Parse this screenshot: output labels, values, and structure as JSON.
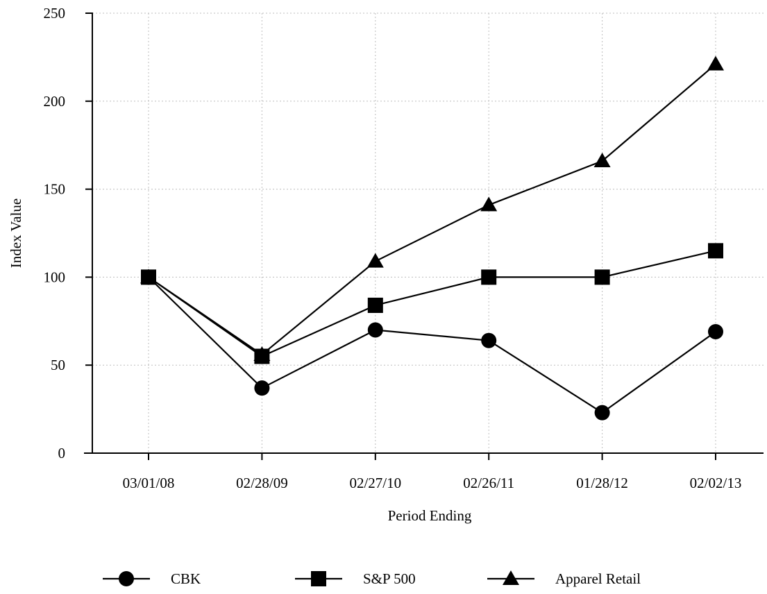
{
  "chart_data": {
    "type": "line",
    "title": "",
    "xlabel": "Period Ending",
    "ylabel": "Index Value",
    "categories": [
      "03/01/08",
      "02/28/09",
      "02/27/10",
      "02/26/11",
      "01/28/12",
      "02/02/13"
    ],
    "ylim": [
      0,
      250
    ],
    "yticks": [
      0,
      50,
      100,
      150,
      200,
      250
    ],
    "grid": true,
    "legend_position": "bottom",
    "series": [
      {
        "name": "CBK",
        "marker": "circle",
        "color": "#000000",
        "values": [
          100,
          37,
          70,
          64,
          23,
          69
        ]
      },
      {
        "name": "S&P 500",
        "marker": "square",
        "color": "#000000",
        "values": [
          100,
          55,
          84,
          100,
          100,
          115
        ]
      },
      {
        "name": "Apparel Retail",
        "marker": "triangle",
        "color": "#000000",
        "values": [
          100,
          56,
          109,
          141,
          166,
          221
        ]
      }
    ]
  }
}
